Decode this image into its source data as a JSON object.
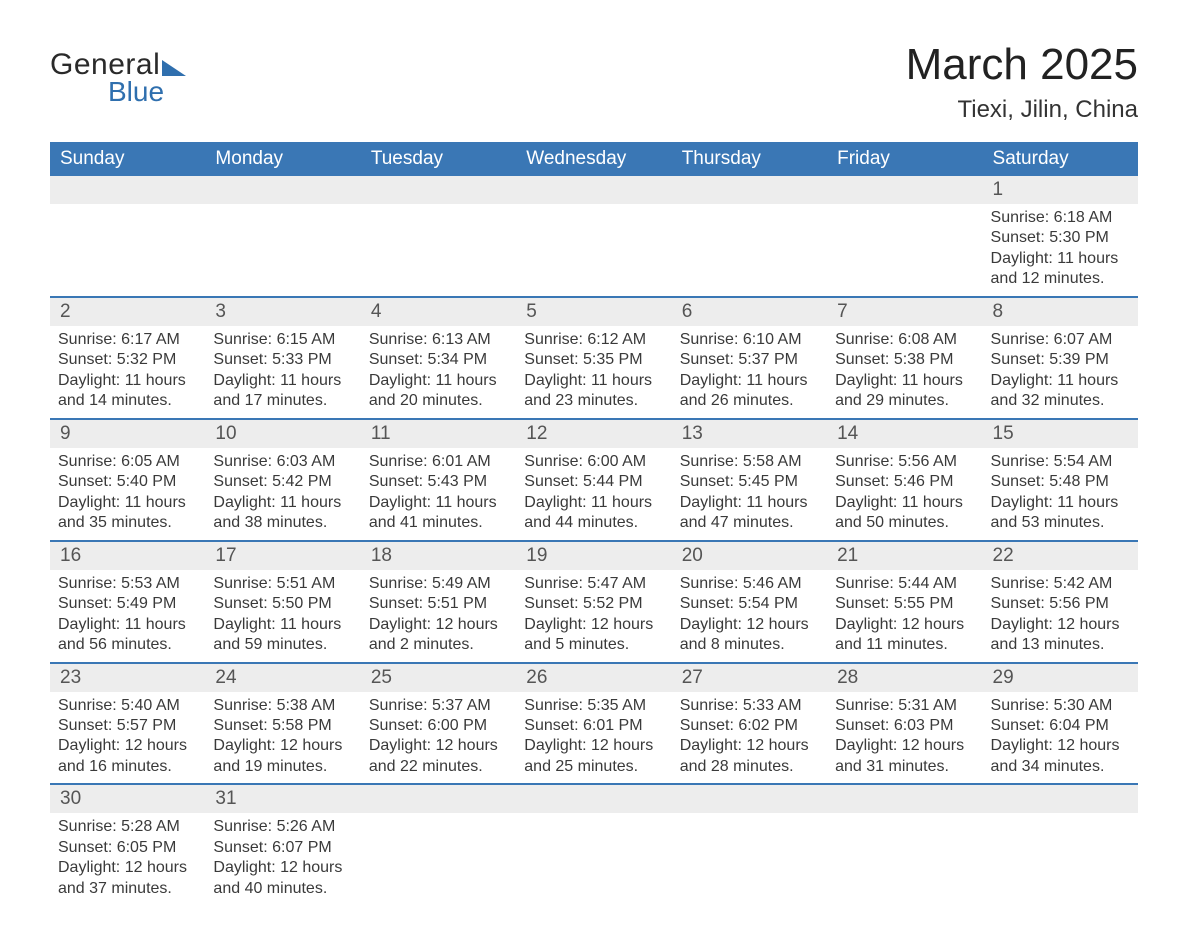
{
  "logo": {
    "word1": "General",
    "word2": "Blue"
  },
  "title": "March 2025",
  "location": "Tiexi, Jilin, China",
  "colors": {
    "header_bg": "#3a77b5",
    "header_text": "#ffffff",
    "daynum_bg": "#ededed",
    "row_divider": "#3a77b5",
    "body_text": "#3a3a3a",
    "logo_accent": "#2f6fae"
  },
  "typography": {
    "title_fontsize": 44,
    "location_fontsize": 24,
    "weekday_fontsize": 19,
    "daynum_fontsize": 19,
    "body_fontsize": 16
  },
  "weekdays": [
    "Sunday",
    "Monday",
    "Tuesday",
    "Wednesday",
    "Thursday",
    "Friday",
    "Saturday"
  ],
  "labels": {
    "sunrise": "Sunrise:",
    "sunset": "Sunset:",
    "daylight": "Daylight:"
  },
  "weeks": [
    [
      null,
      null,
      null,
      null,
      null,
      null,
      {
        "d": "1",
        "sr": "6:18 AM",
        "ss": "5:30 PM",
        "dl": "11 hours and 12 minutes."
      }
    ],
    [
      {
        "d": "2",
        "sr": "6:17 AM",
        "ss": "5:32 PM",
        "dl": "11 hours and 14 minutes."
      },
      {
        "d": "3",
        "sr": "6:15 AM",
        "ss": "5:33 PM",
        "dl": "11 hours and 17 minutes."
      },
      {
        "d": "4",
        "sr": "6:13 AM",
        "ss": "5:34 PM",
        "dl": "11 hours and 20 minutes."
      },
      {
        "d": "5",
        "sr": "6:12 AM",
        "ss": "5:35 PM",
        "dl": "11 hours and 23 minutes."
      },
      {
        "d": "6",
        "sr": "6:10 AM",
        "ss": "5:37 PM",
        "dl": "11 hours and 26 minutes."
      },
      {
        "d": "7",
        "sr": "6:08 AM",
        "ss": "5:38 PM",
        "dl": "11 hours and 29 minutes."
      },
      {
        "d": "8",
        "sr": "6:07 AM",
        "ss": "5:39 PM",
        "dl": "11 hours and 32 minutes."
      }
    ],
    [
      {
        "d": "9",
        "sr": "6:05 AM",
        "ss": "5:40 PM",
        "dl": "11 hours and 35 minutes."
      },
      {
        "d": "10",
        "sr": "6:03 AM",
        "ss": "5:42 PM",
        "dl": "11 hours and 38 minutes."
      },
      {
        "d": "11",
        "sr": "6:01 AM",
        "ss": "5:43 PM",
        "dl": "11 hours and 41 minutes."
      },
      {
        "d": "12",
        "sr": "6:00 AM",
        "ss": "5:44 PM",
        "dl": "11 hours and 44 minutes."
      },
      {
        "d": "13",
        "sr": "5:58 AM",
        "ss": "5:45 PM",
        "dl": "11 hours and 47 minutes."
      },
      {
        "d": "14",
        "sr": "5:56 AM",
        "ss": "5:46 PM",
        "dl": "11 hours and 50 minutes."
      },
      {
        "d": "15",
        "sr": "5:54 AM",
        "ss": "5:48 PM",
        "dl": "11 hours and 53 minutes."
      }
    ],
    [
      {
        "d": "16",
        "sr": "5:53 AM",
        "ss": "5:49 PM",
        "dl": "11 hours and 56 minutes."
      },
      {
        "d": "17",
        "sr": "5:51 AM",
        "ss": "5:50 PM",
        "dl": "11 hours and 59 minutes."
      },
      {
        "d": "18",
        "sr": "5:49 AM",
        "ss": "5:51 PM",
        "dl": "12 hours and 2 minutes."
      },
      {
        "d": "19",
        "sr": "5:47 AM",
        "ss": "5:52 PM",
        "dl": "12 hours and 5 minutes."
      },
      {
        "d": "20",
        "sr": "5:46 AM",
        "ss": "5:54 PM",
        "dl": "12 hours and 8 minutes."
      },
      {
        "d": "21",
        "sr": "5:44 AM",
        "ss": "5:55 PM",
        "dl": "12 hours and 11 minutes."
      },
      {
        "d": "22",
        "sr": "5:42 AM",
        "ss": "5:56 PM",
        "dl": "12 hours and 13 minutes."
      }
    ],
    [
      {
        "d": "23",
        "sr": "5:40 AM",
        "ss": "5:57 PM",
        "dl": "12 hours and 16 minutes."
      },
      {
        "d": "24",
        "sr": "5:38 AM",
        "ss": "5:58 PM",
        "dl": "12 hours and 19 minutes."
      },
      {
        "d": "25",
        "sr": "5:37 AM",
        "ss": "6:00 PM",
        "dl": "12 hours and 22 minutes."
      },
      {
        "d": "26",
        "sr": "5:35 AM",
        "ss": "6:01 PM",
        "dl": "12 hours and 25 minutes."
      },
      {
        "d": "27",
        "sr": "5:33 AM",
        "ss": "6:02 PM",
        "dl": "12 hours and 28 minutes."
      },
      {
        "d": "28",
        "sr": "5:31 AM",
        "ss": "6:03 PM",
        "dl": "12 hours and 31 minutes."
      },
      {
        "d": "29",
        "sr": "5:30 AM",
        "ss": "6:04 PM",
        "dl": "12 hours and 34 minutes."
      }
    ],
    [
      {
        "d": "30",
        "sr": "5:28 AM",
        "ss": "6:05 PM",
        "dl": "12 hours and 37 minutes."
      },
      {
        "d": "31",
        "sr": "5:26 AM",
        "ss": "6:07 PM",
        "dl": "12 hours and 40 minutes."
      },
      null,
      null,
      null,
      null,
      null
    ]
  ]
}
